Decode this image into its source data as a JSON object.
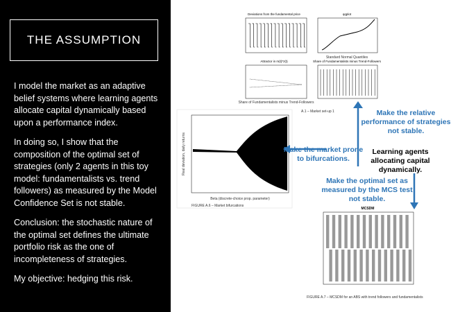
{
  "slide": {
    "title": "THE ASSUMPTION",
    "paragraphs": [
      "I model the market as an adaptive belief systems where learning agents allocate  capital dynamically based upon a performance index.",
      "In doing so, I show that the composition of the optimal  set of strategies  (only 2 agents in this toy model: fundamentalists vs. trend followers) as measured by the Model Confidence Set is not stable.",
      "Conclusion: the stochastic nature of the optimal set defines the ultimate portfolio risk as the one of incompleteness of strategies.",
      "My objective: hedging this risk."
    ],
    "figures": [
      {
        "panels": [
          "Deviations from the fundamental price",
          "qqplot",
          "Attractor in m(t)*z(t)",
          "Share of Fundamentalists minus Trend-Followers"
        ],
        "axis_labels": [
          "Standard Normal Quantiles",
          "Share of Fundamentalists minus Trend-Followers"
        ],
        "caption": "A.1 – Market set-up 1"
      },
      {
        "axis_labels": [
          "Real deviation, daily returns",
          "Beta (discrete-choice prop. parameter)"
        ],
        "caption": "FIGURE A.6 – Market bifurcations"
      },
      {
        "panels": [
          "MCSDM"
        ],
        "caption": "FIGURE A.7 – MCSDM for an ABS with trend followers and fundamentalists"
      }
    ],
    "annotations": {
      "relative_performance": "Make the relative performance of strategies not stable.",
      "bifurcations": "Make the market prone to bifurcations.",
      "learning_agents": "Learning agents allocating capital dynamically.",
      "optimal_set": "Make the optimal set as measured by the MCS test not stable."
    }
  }
}
